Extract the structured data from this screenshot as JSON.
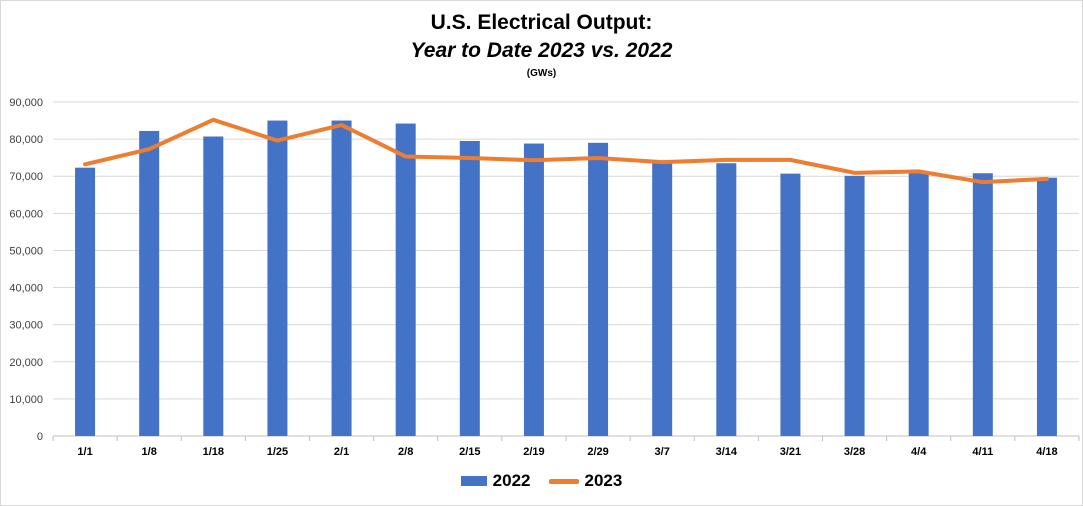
{
  "chart_data": {
    "type": "bar",
    "title": "U.S. Electrical Output:",
    "subtitle": "Year to Date 2023 vs. 2022",
    "unit_label": "(GWs)",
    "categories": [
      "1/1",
      "1/8",
      "1/18",
      "1/25",
      "2/1",
      "2/8",
      "2/15",
      "2/19",
      "2/29",
      "3/7",
      "3/14",
      "3/21",
      "3/28",
      "4/4",
      "4/11",
      "4/18"
    ],
    "series": [
      {
        "name": "2022",
        "type": "bar",
        "color": "#4472C4",
        "values": [
          72300,
          82200,
          80700,
          85000,
          85000,
          84200,
          79500,
          78800,
          79000,
          73500,
          73500,
          70700,
          70100,
          70800,
          70800,
          69600
        ]
      },
      {
        "name": "2023",
        "type": "line",
        "color": "#ED7D31",
        "values": [
          73200,
          77300,
          85200,
          79600,
          83800,
          75300,
          74900,
          74300,
          74900,
          73800,
          74400,
          74400,
          70900,
          71300,
          68400,
          69300
        ]
      }
    ],
    "ylim": [
      0,
      90000
    ],
    "y_ticks": [
      "0",
      "10,000",
      "20,000",
      "30,000",
      "40,000",
      "50,000",
      "60,000",
      "70,000",
      "80,000",
      "90,000"
    ],
    "y_tick_values": [
      0,
      10000,
      20000,
      30000,
      40000,
      50000,
      60000,
      70000,
      80000,
      90000
    ],
    "grid": true,
    "legend_position": "bottom"
  }
}
